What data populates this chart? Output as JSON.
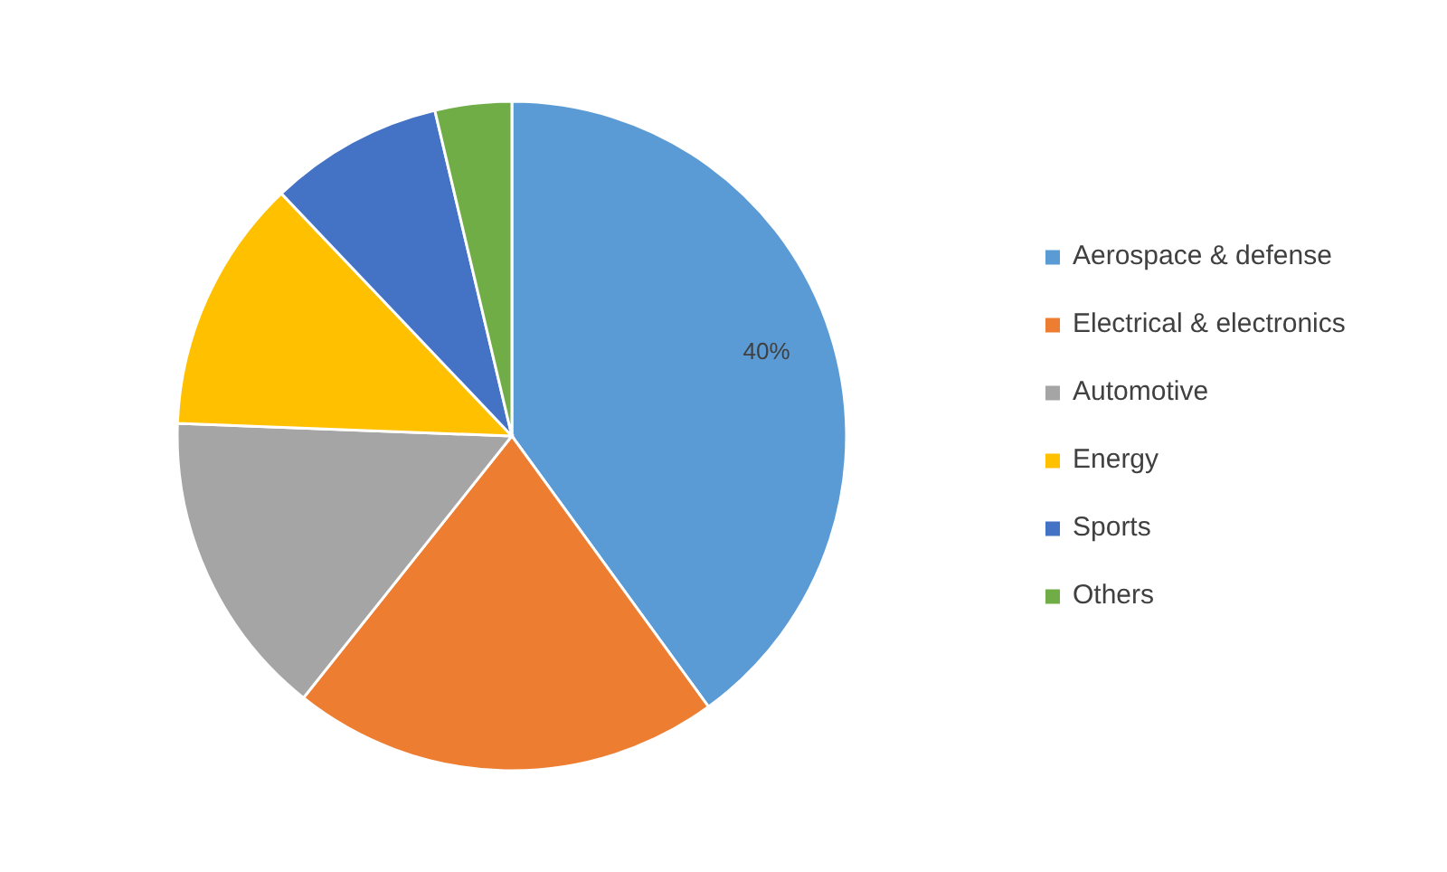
{
  "chart_data": {
    "type": "pie",
    "categories": [
      "Aerospace & defense",
      "Electrical & electronics",
      "Automotive",
      "Energy",
      "Sports",
      "Others"
    ],
    "values": [
      40,
      20.7,
      14.9,
      12.3,
      8.4,
      3.7
    ],
    "colors": [
      "#5b9bd5",
      "#ed7d31",
      "#a5a5a5",
      "#ffc000",
      "#4472c4",
      "#70ad47"
    ],
    "value_labels": [
      "40%",
      null,
      null,
      null,
      null,
      null
    ],
    "legend": "right"
  }
}
